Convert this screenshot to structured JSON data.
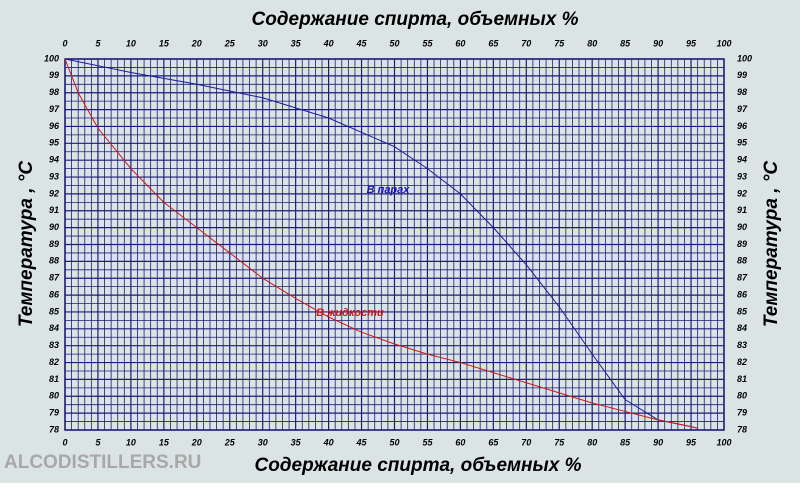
{
  "chart_data": {
    "type": "line",
    "title": "Содержание спирта, объемных %",
    "x_label": "Содержание спирта, объемных %",
    "y_label": "Температура , °С",
    "watermark": "ALCODISTILLERS.RU",
    "xlim": [
      0,
      100
    ],
    "xticks": [
      0,
      5,
      10,
      15,
      20,
      25,
      30,
      35,
      40,
      45,
      50,
      55,
      60,
      65,
      70,
      75,
      80,
      85,
      90,
      95,
      100
    ],
    "ylim": [
      78,
      100
    ],
    "yticks": [
      78,
      79,
      80,
      81,
      82,
      83,
      84,
      85,
      86,
      87,
      88,
      89,
      90,
      91,
      92,
      93,
      94,
      95,
      96,
      97,
      98,
      99,
      100
    ],
    "grid": true,
    "grid_color": "#1c1c78",
    "background": "#dbe4e4",
    "series": [
      {
        "name": "В парах",
        "color": "#1a1aa0",
        "x": [
          0,
          10,
          20,
          30,
          40,
          50,
          55,
          60,
          65,
          70,
          75,
          80,
          85,
          90,
          95,
          96
        ],
        "values": [
          100,
          99.2,
          98.5,
          97.7,
          96.5,
          94.8,
          93.5,
          92,
          90,
          87.8,
          85.3,
          82.5,
          79.8,
          78.6,
          78.2,
          78.1
        ]
      },
      {
        "name": "В жидкости",
        "color": "#d01818",
        "x": [
          0,
          2,
          5,
          10,
          15,
          20,
          25,
          30,
          35,
          40,
          45,
          50,
          55,
          60,
          65,
          70,
          75,
          80,
          85,
          90,
          95,
          96
        ],
        "values": [
          100,
          98,
          95.9,
          93.5,
          91.5,
          90,
          88.5,
          87,
          85.8,
          84.7,
          83.8,
          83.1,
          82.5,
          82,
          81.4,
          80.8,
          80.2,
          79.6,
          79.1,
          78.6,
          78.2,
          78.1
        ]
      }
    ]
  }
}
